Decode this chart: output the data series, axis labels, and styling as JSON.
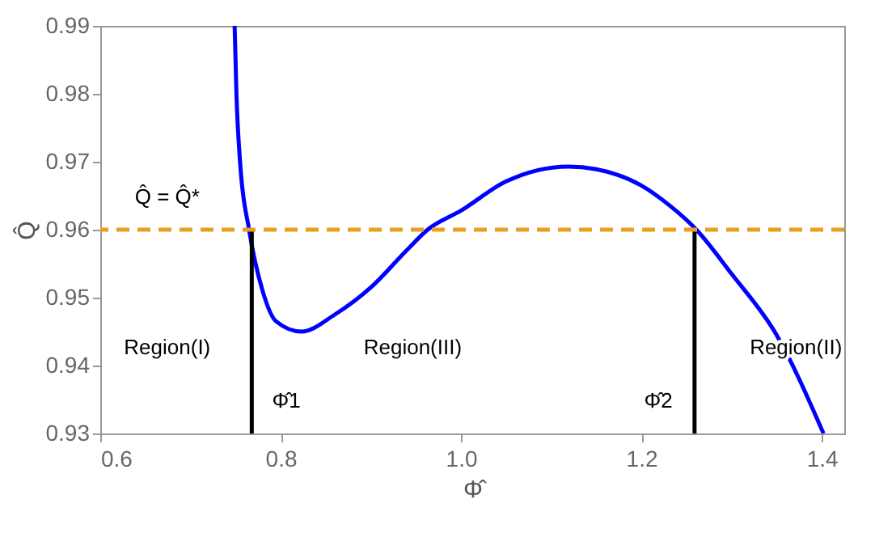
{
  "chart_data": {
    "type": "line",
    "xlabel": "Φ̂",
    "ylabel": "Q̂",
    "xlim": [
      0.6,
      1.425
    ],
    "ylim": [
      0.93,
      0.99
    ],
    "xticks": [
      0.6,
      0.8,
      {
        "value": 1,
        "label": "1.0"
      },
      1.2,
      1.4
    ],
    "yticks": [
      0.93,
      0.94,
      0.95,
      0.96,
      0.97,
      0.98,
      0.99
    ],
    "grid": false,
    "marker": "none",
    "series": [
      {
        "color": "#0000ff",
        "x": [
          0.749,
          0.751,
          0.755,
          0.765,
          0.78,
          0.795,
          0.823,
          0.86,
          0.9,
          0.94,
          0.963,
          1.0,
          1.05,
          1.119,
          1.15,
          1.2,
          1.23,
          1.261,
          1.3,
          1.35,
          1.402
        ],
        "values": [
          0.99,
          0.98,
          0.97,
          0.96,
          0.951,
          0.9465,
          0.945,
          0.9475,
          0.9515,
          0.957,
          0.96,
          0.9628,
          0.9671,
          0.9693,
          0.9689,
          0.9665,
          0.9637,
          0.96,
          0.9535,
          0.9445,
          0.93
        ]
      },
      {
        "color": "#000000",
        "x": [
          0.768,
          0.768
        ],
        "values": [
          0.93,
          0.96
        ]
      },
      {
        "color": "#000000",
        "x": [
          1.259,
          1.259
        ],
        "values": [
          0.93,
          0.96
        ]
      }
    ],
    "ref_lines": [
      {
        "axis": "y",
        "value": 0.96,
        "color": "#e8a020",
        "line_style": "dashed"
      }
    ],
    "annotations": [
      "Q̂ = Q̂*",
      "Region(I)",
      "Region(III)",
      "Region(II)",
      "Φ̂1",
      "Φ̂2"
    ]
  }
}
